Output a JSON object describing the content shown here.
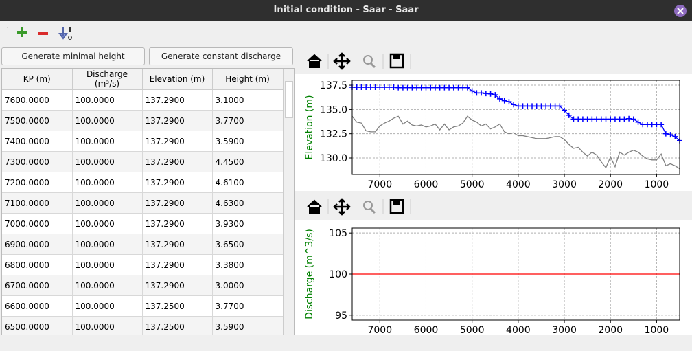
{
  "window": {
    "title": "Initial condition - Saar - Saar"
  },
  "buttons": [
    "Generate minimal height",
    "Generate constant discharge"
  ],
  "table": {
    "headers": [
      "KP (m)",
      "Discharge (m³/s)",
      "Elevation (m)",
      "Height (m)"
    ],
    "rows": [
      [
        "7600.0000",
        "100.0000",
        "137.2900",
        "3.1000"
      ],
      [
        "7500.0000",
        "100.0000",
        "137.2900",
        "3.7700"
      ],
      [
        "7400.0000",
        "100.0000",
        "137.2900",
        "3.5900"
      ],
      [
        "7300.0000",
        "100.0000",
        "137.2900",
        "4.4500"
      ],
      [
        "7200.0000",
        "100.0000",
        "137.2900",
        "4.6100"
      ],
      [
        "7100.0000",
        "100.0000",
        "137.2900",
        "4.6300"
      ],
      [
        "7000.0000",
        "100.0000",
        "137.2900",
        "3.9300"
      ],
      [
        "6900.0000",
        "100.0000",
        "137.2900",
        "3.6500"
      ],
      [
        "6800.0000",
        "100.0000",
        "137.2900",
        "3.3800"
      ],
      [
        "6700.0000",
        "100.0000",
        "137.2900",
        "3.0000"
      ],
      [
        "6600.0000",
        "100.0000",
        "137.2500",
        "3.7700"
      ],
      [
        "6500.0000",
        "100.0000",
        "137.2500",
        "3.5900"
      ]
    ]
  },
  "chart_data": [
    {
      "type": "line",
      "ylabel": "Elevation (m)",
      "grid": true,
      "xlim": [
        7600,
        500
      ],
      "xticks": [
        7000,
        6000,
        5000,
        4000,
        3000,
        2000,
        1000
      ],
      "ylim": [
        128.3,
        138.0
      ],
      "yticks": [
        137.5,
        {
          "value": 135.0,
          "label": "135.0"
        },
        132.5,
        {
          "value": 130.0,
          "label": "130.0"
        }
      ],
      "x": [
        7600,
        7500,
        7400,
        7300,
        7200,
        7100,
        7000,
        6900,
        6800,
        6700,
        6600,
        6500,
        6400,
        6300,
        6200,
        6100,
        6000,
        5900,
        5800,
        5700,
        5600,
        5500,
        5400,
        5300,
        5200,
        5100,
        5000,
        4900,
        4800,
        4700,
        4600,
        4500,
        4400,
        4300,
        4200,
        4100,
        4000,
        3900,
        3800,
        3700,
        3600,
        3500,
        3400,
        3300,
        3200,
        3100,
        3000,
        2900,
        2800,
        2700,
        2600,
        2500,
        2400,
        2300,
        2200,
        2100,
        2000,
        1900,
        1800,
        1700,
        1600,
        1500,
        1400,
        1300,
        1200,
        1100,
        1000,
        900,
        800,
        700,
        600,
        500
      ],
      "series": [
        {
          "color": "#0000ff",
          "marker": "+",
          "values": [
            137.29,
            137.29,
            137.29,
            137.29,
            137.29,
            137.29,
            137.29,
            137.29,
            137.29,
            137.29,
            137.25,
            137.25,
            137.25,
            137.25,
            137.25,
            137.25,
            137.25,
            137.25,
            137.25,
            137.25,
            137.25,
            137.25,
            137.25,
            137.25,
            137.25,
            137.25,
            136.9,
            136.7,
            136.7,
            136.65,
            136.6,
            136.5,
            136.1,
            135.9,
            135.8,
            135.5,
            135.35,
            135.35,
            135.35,
            135.35,
            135.35,
            135.35,
            135.35,
            135.35,
            135.35,
            135.35,
            134.9,
            134.4,
            134.0,
            134.0,
            134.0,
            134.0,
            134.0,
            134.0,
            134.0,
            134.0,
            134.0,
            134.0,
            134.0,
            134.0,
            134.05,
            134.0,
            133.7,
            133.45,
            133.45,
            133.45,
            133.45,
            133.45,
            132.5,
            132.4,
            132.2,
            131.8
          ]
        },
        {
          "color": "#808080",
          "values": [
            134.3,
            133.7,
            133.6,
            132.8,
            132.7,
            132.7,
            133.3,
            133.6,
            133.8,
            134.1,
            134.3,
            133.5,
            133.8,
            133.4,
            133.3,
            133.4,
            133.2,
            133.3,
            133.5,
            132.9,
            133.5,
            132.9,
            133.2,
            133.3,
            133.6,
            134.3,
            133.9,
            133.7,
            133.3,
            133.5,
            133.0,
            133.2,
            133.5,
            132.7,
            132.5,
            132.6,
            132.3,
            132.3,
            132.2,
            132.1,
            132.0,
            132.0,
            132.0,
            132.1,
            132.2,
            132.2,
            131.9,
            131.4,
            131.0,
            131.1,
            130.6,
            130.2,
            130.6,
            130.3,
            129.6,
            129.0,
            130.1,
            129.1,
            130.6,
            130.3,
            130.6,
            130.8,
            130.6,
            130.2,
            129.9,
            129.8,
            129.8,
            130.4,
            129.2,
            129.4,
            129.2,
            128.9
          ]
        }
      ]
    },
    {
      "type": "line",
      "ylabel": "Discharge (m^3/s)",
      "grid": true,
      "xlim": [
        7600,
        500
      ],
      "xticks": [
        7000,
        6000,
        5000,
        4000,
        3000,
        2000,
        1000
      ],
      "ylim": [
        94.4,
        105.6
      ],
      "yticks": [
        105,
        100,
        95
      ],
      "x": [
        7600,
        7500,
        7400,
        7300,
        7200,
        7100,
        7000,
        6900,
        6800,
        6700,
        6600,
        6500,
        6400,
        6300,
        6200,
        6100,
        6000,
        5900,
        5800,
        5700,
        5600,
        5500,
        5400,
        5300,
        5200,
        5100,
        5000,
        4900,
        4800,
        4700,
        4600,
        4500,
        4400,
        4300,
        4200,
        4100,
        4000,
        3900,
        3800,
        3700,
        3600,
        3500,
        3400,
        3300,
        3200,
        3100,
        3000,
        2900,
        2800,
        2700,
        2600,
        2500,
        2400,
        2300,
        2200,
        2100,
        2000,
        1900,
        1800,
        1700,
        1600,
        1500,
        1400,
        1300,
        1200,
        1100,
        1000,
        900,
        800,
        700,
        600,
        500
      ],
      "series": [
        {
          "color": "#ff0000",
          "values": [
            100,
            100,
            100,
            100,
            100,
            100,
            100,
            100,
            100,
            100,
            100,
            100,
            100,
            100,
            100,
            100,
            100,
            100,
            100,
            100,
            100,
            100,
            100,
            100,
            100,
            100,
            100,
            100,
            100,
            100,
            100,
            100,
            100,
            100,
            100,
            100,
            100,
            100,
            100,
            100,
            100,
            100,
            100,
            100,
            100,
            100,
            100,
            100,
            100,
            100,
            100,
            100,
            100,
            100,
            100,
            100,
            100,
            100,
            100,
            100,
            100,
            100,
            100,
            100,
            100,
            100,
            100,
            100,
            100,
            100,
            100,
            100
          ]
        }
      ]
    }
  ]
}
